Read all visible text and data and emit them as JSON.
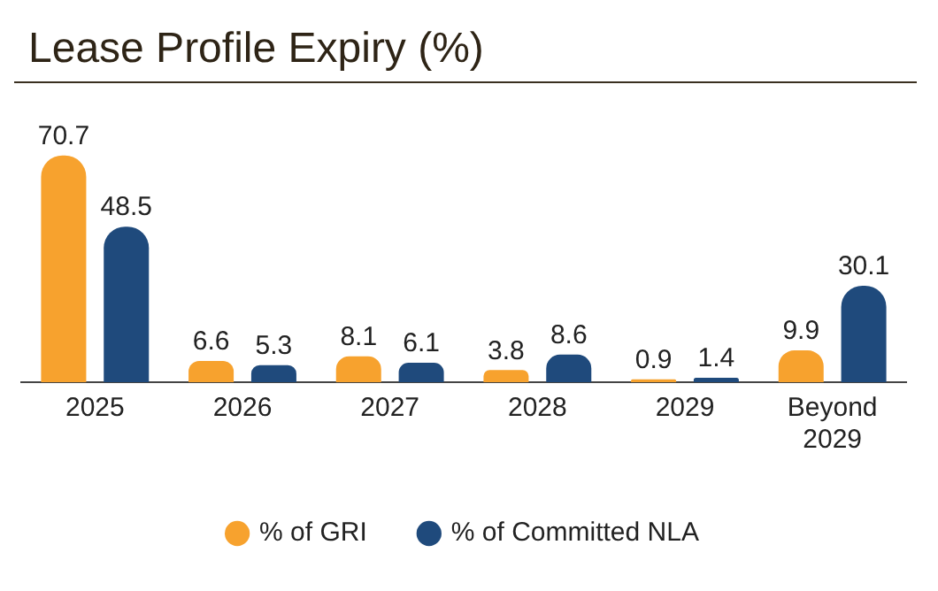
{
  "chart_data": {
    "type": "bar",
    "title": "Lease Profile Expiry (%)",
    "categories": [
      "2025",
      "2026",
      "2027",
      "2028",
      "2029",
      "Beyond 2029"
    ],
    "series": [
      {
        "name": "% of GRI",
        "color": "#f7a22e",
        "values": [
          70.7,
          6.6,
          8.1,
          3.8,
          0.9,
          9.9
        ]
      },
      {
        "name": "% of Committed NLA",
        "color": "#1f4a7c",
        "values": [
          48.5,
          5.3,
          6.1,
          8.6,
          1.4,
          30.1
        ]
      }
    ],
    "data_labels": true,
    "legend": "bottom",
    "grid": false
  }
}
